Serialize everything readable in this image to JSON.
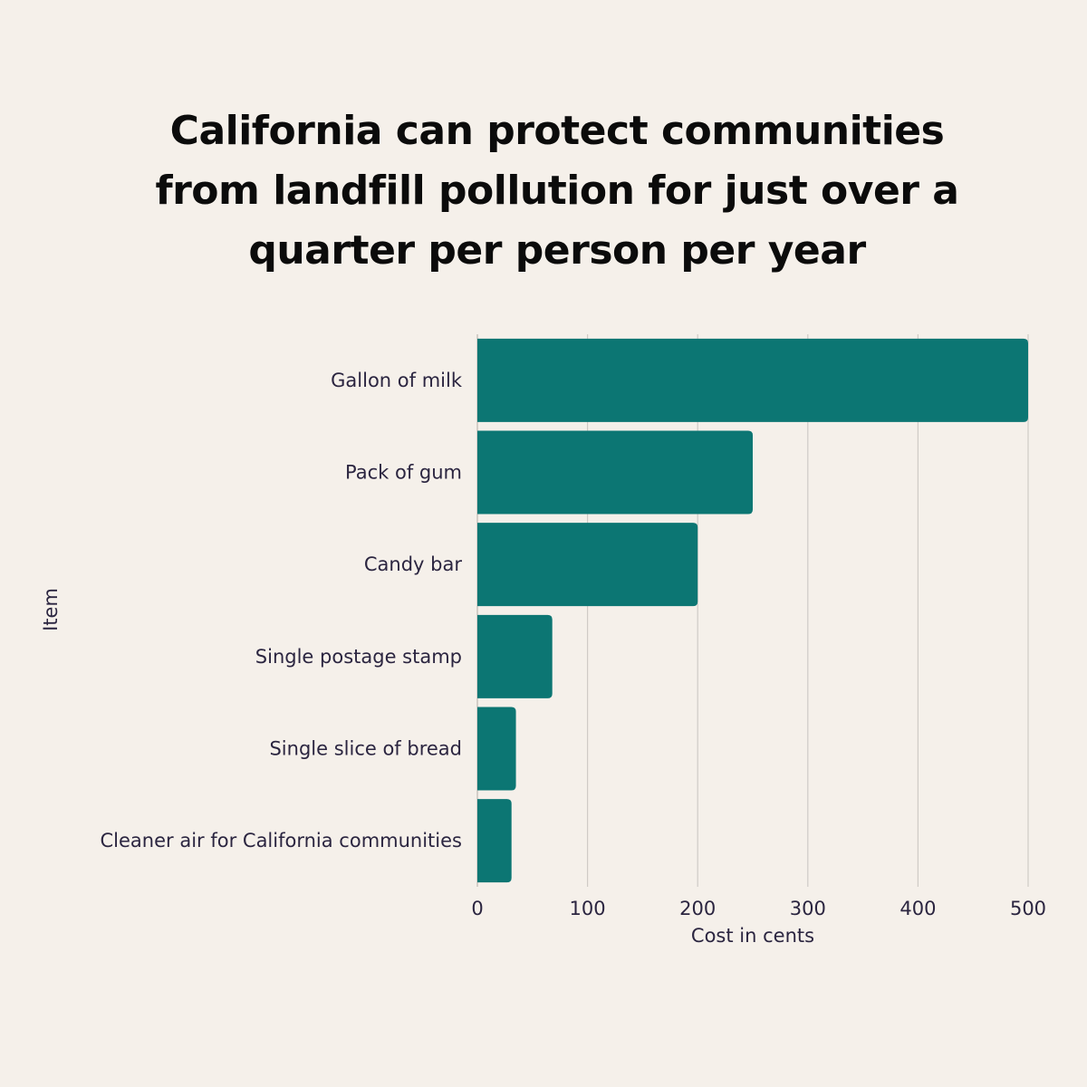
{
  "chart_data": {
    "type": "bar",
    "orientation": "horizontal",
    "title": "California can protect communities from landfill pollution for just over a quarter per person per year",
    "xlabel": "Cost in cents",
    "ylabel": "Item",
    "categories": [
      "Gallon of milk",
      "Pack of gum",
      "Candy bar",
      "Single postage stamp",
      "Single slice of bread",
      "Cleaner air for California communities"
    ],
    "values": [
      500,
      250,
      200,
      68,
      35,
      31
    ],
    "xlim": [
      0,
      500
    ],
    "xticks": [
      "0",
      "100",
      "200",
      "300",
      "400",
      "500"
    ],
    "grid": "vertical",
    "bar_color": "#0c7673",
    "grid_color": "#cfcbc6"
  }
}
